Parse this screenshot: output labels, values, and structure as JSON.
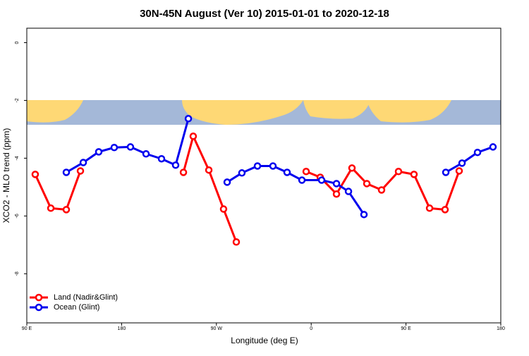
{
  "chart_data": {
    "type": "line",
    "title": "30N-45N August (Ver 10)   2015-01-01 to 2020-12-18",
    "x_label": "Longitude (deg E)",
    "y_label": "XCO2 - MLO trend (ppm)",
    "xlim": [
      90,
      540
    ],
    "ylim": [
      -9.7,
      0.5
    ],
    "xticks": [
      {
        "value": 90,
        "label": "90 E"
      },
      180,
      {
        "value": 270,
        "label": "90 W"
      },
      {
        "value": 360,
        "label": "0"
      },
      {
        "value": 450,
        "label": "90 E"
      },
      {
        "value": 540,
        "label": "180"
      }
    ],
    "yticks": [
      0,
      -2,
      -4,
      -6,
      -8
    ],
    "legend": "bottom-left",
    "series": [
      {
        "name": "Land (Nadir&Glint)",
        "color": "#ff0000",
        "x": [
          98,
          112.8,
          127.5,
          140.9,
          null,
          238.7,
          248,
          262.8,
          276.8,
          288.9,
          null,
          355.2,
          368.6,
          384,
          398.7,
          412.8,
          426.8,
          442.9,
          457.6,
          472.4,
          487.1,
          500.5
        ],
        "values": [
          -4.56,
          -5.73,
          -5.78,
          -4.44,
          null,
          -4.49,
          -3.24,
          -4.41,
          -5.76,
          -6.9,
          null,
          -4.46,
          -4.66,
          -5.24,
          -4.34,
          -4.88,
          -5.1,
          -4.46,
          -4.56,
          -5.73,
          -5.78,
          -4.44
        ]
      },
      {
        "name": "Ocean (Glint)",
        "color": "#0000ee",
        "x": [
          127.5,
          143.6,
          158.3,
          173,
          188.4,
          203.2,
          217.9,
          231.3,
          243.4,
          null,
          280.2,
          294.2,
          309,
          323.7,
          337.1,
          351.2,
          369.9,
          384,
          395.4,
          410.1,
          null,
          487.8,
          503.2,
          517.9,
          532.6
        ],
        "values": [
          -4.49,
          -4.15,
          -3.78,
          -3.63,
          -3.61,
          -3.85,
          -4.02,
          -4.24,
          -2.63,
          null,
          -4.83,
          -4.51,
          -4.27,
          -4.27,
          -4.49,
          -4.76,
          -4.76,
          -4.88,
          -5.15,
          -5.95,
          null,
          -4.49,
          -4.17,
          -3.8,
          -3.61
        ]
      }
    ]
  }
}
